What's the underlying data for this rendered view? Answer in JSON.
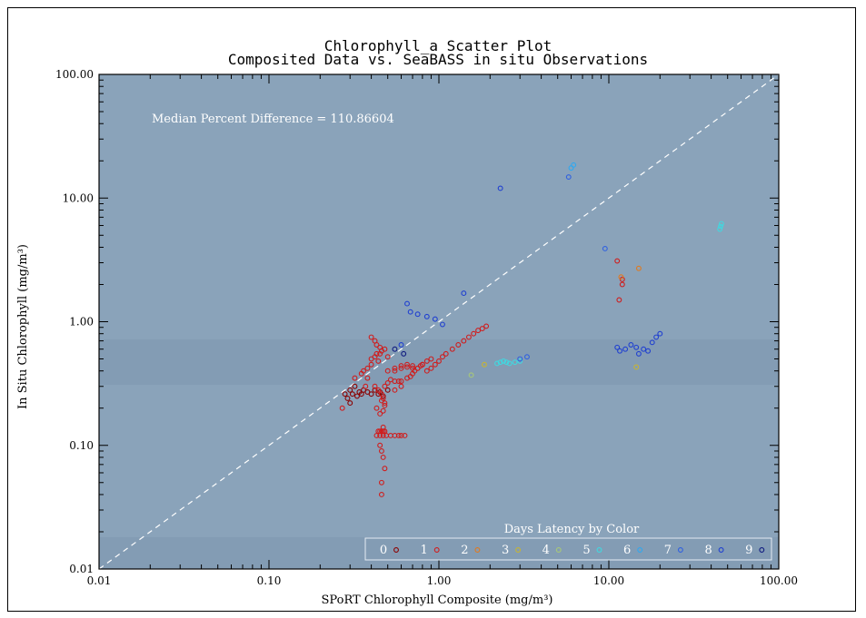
{
  "chart_data": {
    "type": "scatter",
    "title": "Chlorophyll_a Scatter Plot",
    "subtitle": "Composited Data vs. SeaBASS in situ Observations",
    "xlabel": "SPoRT Chlorophyll Composite (mg/m³)",
    "ylabel": "In Situ Chlorophyll (mg/m³)",
    "x_scale": "log",
    "y_scale": "log",
    "xlim": [
      0.01,
      100
    ],
    "ylim": [
      0.01,
      100
    ],
    "x_ticks": [
      "0.01",
      "0.10",
      "1.00",
      "10.00",
      "100.00"
    ],
    "y_ticks": [
      "0.01",
      "0.10",
      "1.00",
      "10.00",
      "100.00"
    ],
    "reference_line": "1:1",
    "annotation": "Median Percent Difference = 110.86604",
    "legend_title": "Days Latency by Color",
    "legend_placement": "bottom-right",
    "background_color": "#8aa3ba",
    "series": [
      {
        "name": "0",
        "color": "#8b0000",
        "x": [
          0.28,
          0.29,
          0.3,
          0.3,
          0.31,
          0.32,
          0.33,
          0.34,
          0.35,
          0.36,
          0.38,
          0.4,
          0.42,
          0.44,
          0.45,
          0.47,
          0.5
        ],
        "y": [
          0.26,
          0.24,
          0.22,
          0.28,
          0.26,
          0.3,
          0.25,
          0.27,
          0.26,
          0.28,
          0.27,
          0.26,
          0.28,
          0.26,
          0.27,
          0.25,
          0.28
        ]
      },
      {
        "name": "1",
        "color": "#d01c1c",
        "x": [
          0.27,
          0.32,
          0.35,
          0.36,
          0.38,
          0.4,
          0.4,
          0.42,
          0.43,
          0.44,
          0.45,
          0.46,
          0.48,
          0.5,
          0.42,
          0.44,
          0.46,
          0.47,
          0.48,
          0.43,
          0.45,
          0.46,
          0.47,
          0.48,
          0.45,
          0.47,
          0.44,
          0.46,
          0.48,
          0.43,
          0.45,
          0.47,
          0.49,
          0.52,
          0.55,
          0.58,
          0.6,
          0.63,
          0.45,
          0.46,
          0.47,
          0.48,
          0.46,
          0.46,
          0.47,
          0.47,
          0.48,
          0.5,
          0.52,
          0.55,
          0.58,
          0.6,
          0.65,
          0.68,
          0.7,
          0.72,
          0.75,
          0.78,
          0.8,
          0.85,
          0.9,
          0.95,
          1.0,
          1.05,
          1.1,
          1.2,
          1.3,
          1.4,
          1.5,
          1.6,
          1.7,
          1.8,
          1.9,
          0.55,
          0.6,
          0.65,
          0.7,
          0.75,
          0.8,
          0.85,
          0.9,
          0.55,
          0.6,
          0.4,
          0.42,
          0.43,
          0.45,
          0.5,
          0.55,
          0.6,
          0.65,
          0.7,
          0.38,
          0.37,
          12.0,
          11.5,
          11.2,
          12.0
        ],
        "y": [
          0.2,
          0.35,
          0.38,
          0.4,
          0.42,
          0.45,
          0.5,
          0.52,
          0.55,
          0.48,
          0.55,
          0.58,
          0.6,
          0.52,
          0.3,
          0.28,
          0.26,
          0.24,
          0.22,
          0.2,
          0.18,
          0.23,
          0.19,
          0.21,
          0.13,
          0.13,
          0.13,
          0.13,
          0.13,
          0.12,
          0.12,
          0.12,
          0.12,
          0.12,
          0.12,
          0.12,
          0.12,
          0.12,
          0.1,
          0.09,
          0.08,
          0.065,
          0.05,
          0.04,
          0.14,
          0.13,
          0.3,
          0.32,
          0.34,
          0.33,
          0.33,
          0.33,
          0.35,
          0.36,
          0.38,
          0.4,
          0.42,
          0.44,
          0.45,
          0.48,
          0.5,
          0.45,
          0.48,
          0.52,
          0.55,
          0.6,
          0.65,
          0.7,
          0.75,
          0.8,
          0.85,
          0.88,
          0.92,
          0.4,
          0.42,
          0.43,
          0.44,
          0.42,
          0.45,
          0.4,
          0.42,
          0.28,
          0.3,
          0.75,
          0.7,
          0.65,
          0.62,
          0.4,
          0.42,
          0.44,
          0.45,
          0.42,
          0.35,
          0.3,
          2.0,
          1.5,
          3.1,
          2.2
        ]
      },
      {
        "name": "2",
        "color": "#e07a1f",
        "x": [
          11.8,
          15.0
        ],
        "y": [
          2.3,
          2.7
        ]
      },
      {
        "name": "3",
        "color": "#c8b432",
        "x": [
          1.85,
          14.5
        ],
        "y": [
          0.45,
          0.43
        ]
      },
      {
        "name": "4",
        "color": "#a8c878",
        "x": [
          1.55
        ],
        "y": [
          0.37
        ]
      },
      {
        "name": "5",
        "color": "#40d8e0",
        "x": [
          2.2,
          2.3,
          2.4,
          2.5,
          2.6,
          2.8,
          3.0,
          45.0,
          45.5,
          46.0
        ],
        "y": [
          0.46,
          0.47,
          0.48,
          0.47,
          0.46,
          0.47,
          0.48,
          5.6,
          5.9,
          6.2
        ]
      },
      {
        "name": "6",
        "color": "#30a8f0",
        "x": [
          6.0,
          6.2
        ],
        "y": [
          17.5,
          18.5
        ]
      },
      {
        "name": "7",
        "color": "#3060e0",
        "x": [
          3.0,
          3.3,
          9.5,
          5.8
        ],
        "y": [
          0.5,
          0.52,
          3.9,
          14.8
        ]
      },
      {
        "name": "8",
        "color": "#2040d0",
        "x": [
          0.6,
          0.65,
          0.68,
          0.75,
          0.85,
          0.95,
          1.05,
          1.4,
          2.3,
          11.2,
          11.6,
          12.5,
          13.5,
          14.5,
          15.0,
          16.0,
          17.0,
          18.0,
          19.0,
          20.0
        ],
        "y": [
          0.65,
          1.4,
          1.2,
          1.15,
          1.1,
          1.05,
          0.95,
          1.7,
          12.0,
          0.62,
          0.58,
          0.6,
          0.65,
          0.62,
          0.55,
          0.6,
          0.58,
          0.68,
          0.75,
          0.8
        ]
      },
      {
        "name": "9",
        "color": "#101c80",
        "x": [
          0.55,
          0.62
        ],
        "y": [
          0.6,
          0.55
        ]
      }
    ]
  }
}
